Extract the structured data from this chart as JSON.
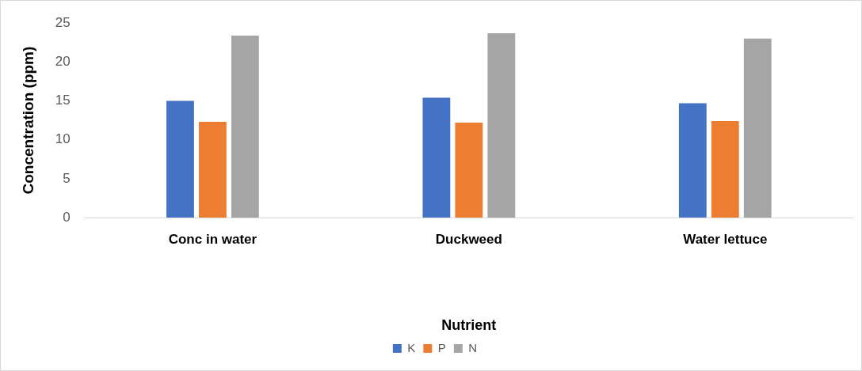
{
  "chart_data": {
    "type": "bar",
    "xlabel": "Nutrient",
    "ylabel": "Concentration (ppm)",
    "categories": [
      "Conc in water",
      "Duckweed",
      "Water lettuce"
    ],
    "series": [
      {
        "name": "K",
        "color": "#4472c4",
        "values": [
          15.0,
          15.4,
          14.7
        ]
      },
      {
        "name": "P",
        "color": "#ed7d31",
        "values": [
          12.3,
          12.2,
          12.4
        ]
      },
      {
        "name": "N",
        "color": "#a5a5a5",
        "values": [
          23.4,
          23.7,
          23.0
        ]
      }
    ],
    "ylim": [
      0,
      25
    ],
    "yticks": [
      0,
      5,
      10,
      15,
      20,
      25
    ],
    "grid": false,
    "legend": "bottom"
  }
}
